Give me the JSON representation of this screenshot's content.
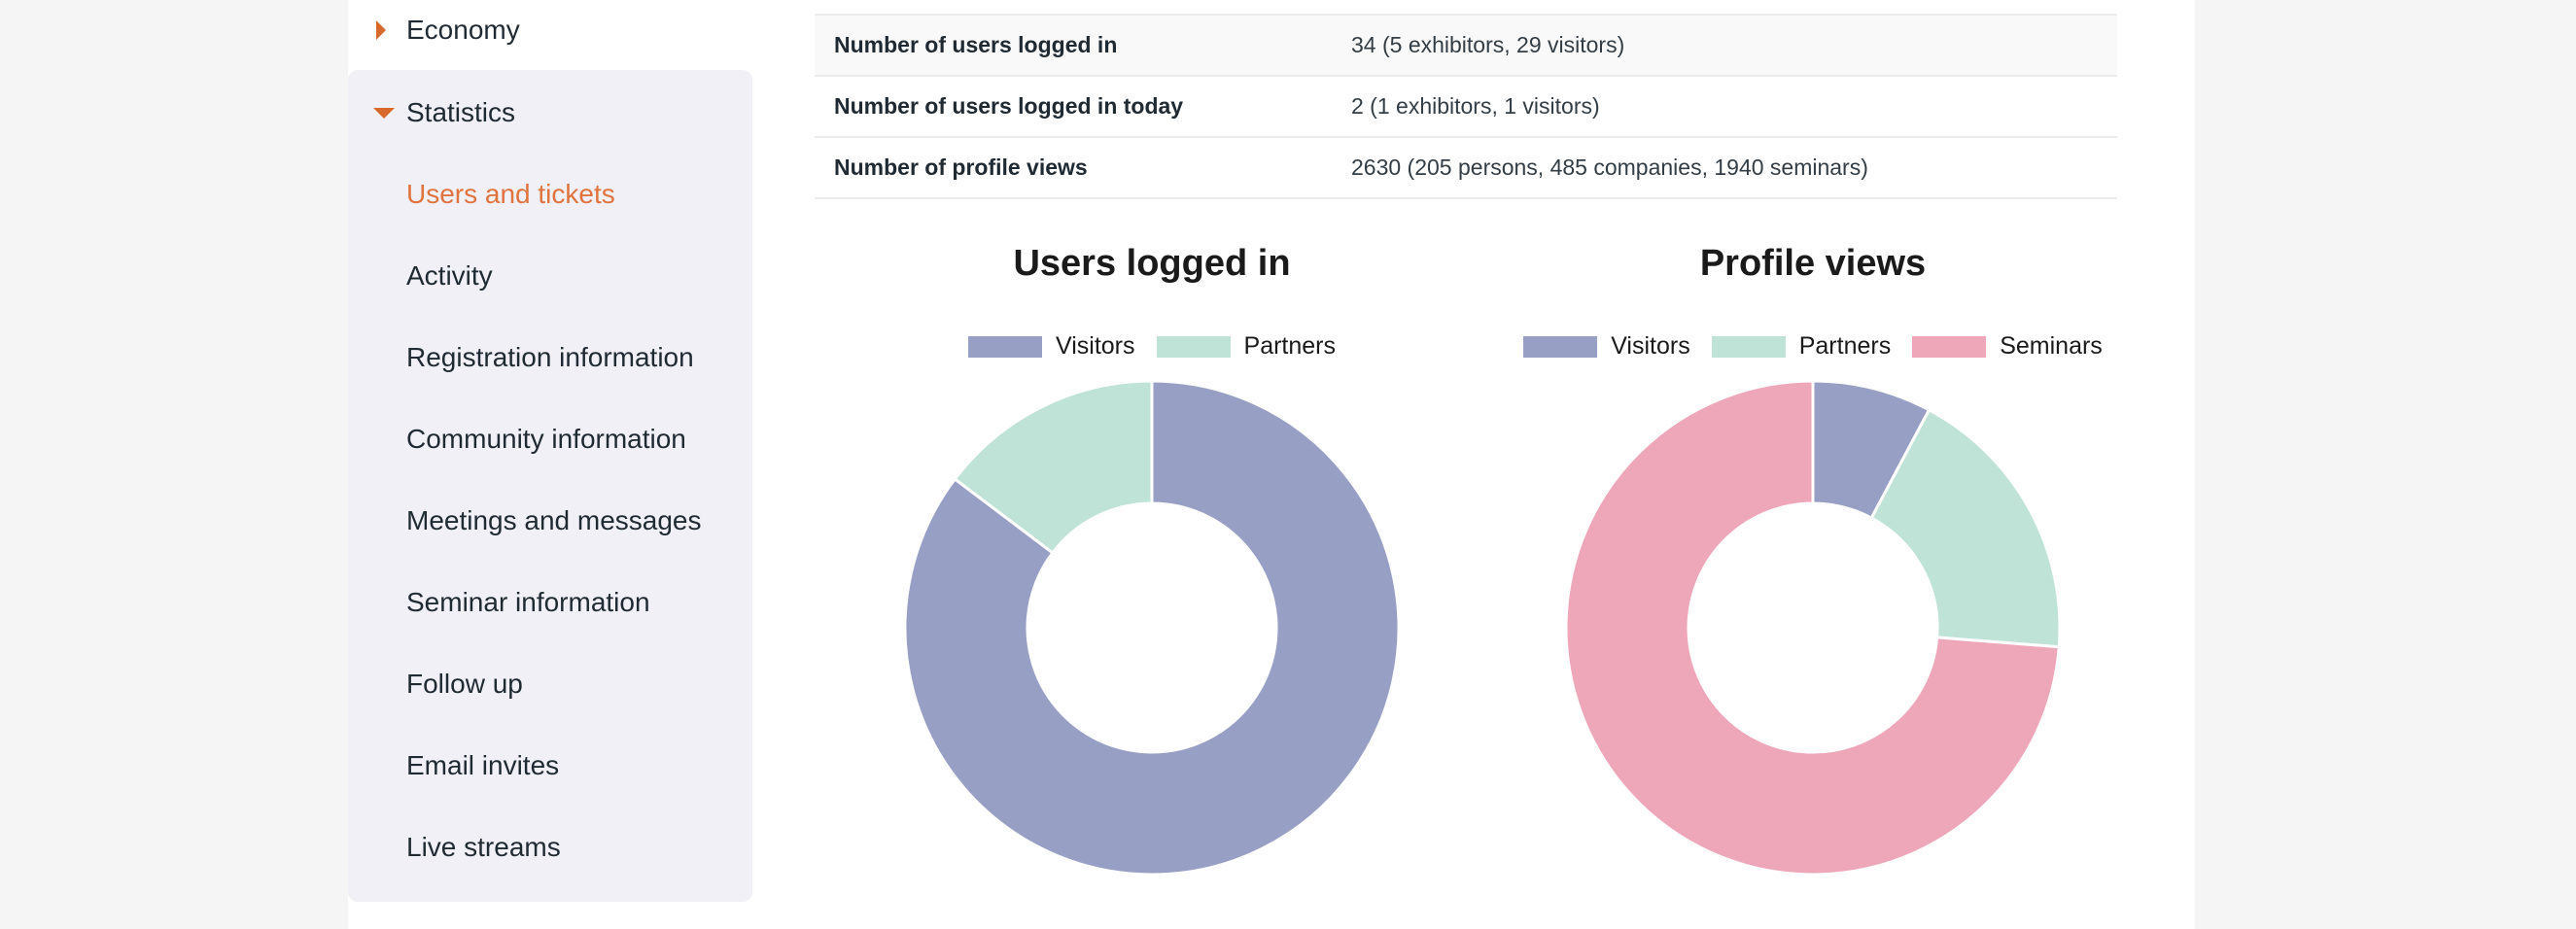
{
  "sidebar": {
    "economy": {
      "label": "Economy",
      "expanded": false
    },
    "statistics": {
      "label": "Statistics",
      "expanded": true,
      "items": [
        {
          "label": "Users and tickets",
          "active": true
        },
        {
          "label": "Activity",
          "active": false
        },
        {
          "label": "Registration information",
          "active": false
        },
        {
          "label": "Community information",
          "active": false
        },
        {
          "label": "Meetings and messages",
          "active": false
        },
        {
          "label": "Seminar information",
          "active": false
        },
        {
          "label": "Follow up",
          "active": false
        },
        {
          "label": "Email invites",
          "active": false
        },
        {
          "label": "Live streams",
          "active": false
        }
      ]
    },
    "accent_color": "#d6692b"
  },
  "stats": [
    {
      "label": "Number of users logged in",
      "value": "34 (5 exhibitors, 29 visitors)"
    },
    {
      "label": "Number of users logged in today",
      "value": "2 (1 exhibitors, 1 visitors)"
    },
    {
      "label": "Number of profile views",
      "value": "2630 (205 persons, 485 companies, 1940 seminars)"
    }
  ],
  "chart_data": [
    {
      "type": "pie",
      "donut": true,
      "title": "Users logged in",
      "legend_position": "top",
      "categories": [
        "Visitors",
        "Partners"
      ],
      "values": [
        29,
        5
      ],
      "colors": [
        "#989fc4",
        "#bfe3d7"
      ]
    },
    {
      "type": "pie",
      "donut": true,
      "title": "Profile views",
      "legend_position": "top",
      "categories": [
        "Visitors",
        "Partners",
        "Seminars"
      ],
      "values": [
        205,
        485,
        1940
      ],
      "colors": [
        "#989fc4",
        "#bfe3d7",
        "#eea6b9"
      ]
    }
  ]
}
